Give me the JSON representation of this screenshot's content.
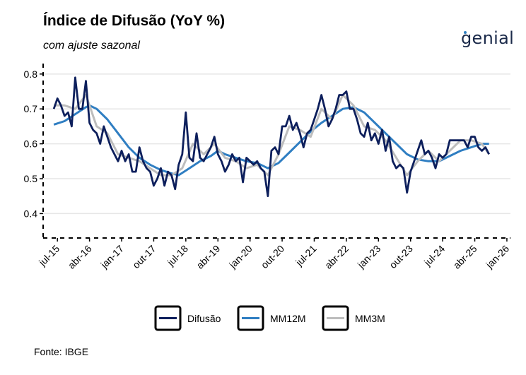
{
  "title": "Índice de Difusão (YoY %)",
  "subtitle": "com ajuste sazonal",
  "logo_text": "genial",
  "source": "Fonte: IBGE",
  "chart_data": {
    "type": "line",
    "title": "Índice de Difusão (YoY %)",
    "subtitle": "com ajuste sazonal",
    "xlabel": "",
    "ylabel": "",
    "ylim": [
      0.33,
      0.83
    ],
    "xlim": [
      "2015-03",
      "2026-02"
    ],
    "yticks": [
      0.4,
      0.5,
      0.6,
      0.7,
      0.8
    ],
    "ytick_labels": [
      "0.4",
      "0.5",
      "0.6",
      "0.7",
      "0.8"
    ],
    "xticks": [
      "2015-07",
      "2016-04",
      "2017-01",
      "2017-10",
      "2018-07",
      "2019-04",
      "2020-01",
      "2020-10",
      "2021-07",
      "2022-04",
      "2023-01",
      "2023-10",
      "2024-07",
      "2025-04",
      "2026-01"
    ],
    "xtick_labels": [
      "jul-15",
      "abr-16",
      "jan-17",
      "out-17",
      "jul-18",
      "abr-19",
      "jan-20",
      "out-20",
      "jul-21",
      "abr-22",
      "jan-23",
      "out-23",
      "jul-24",
      "abr-25",
      "jan-26"
    ],
    "grid": "horizontal",
    "legend_position": "bottom",
    "series": [
      {
        "name": "Difusão",
        "color": "#0d1f5c",
        "points": [
          [
            "2015-06",
            0.7
          ],
          [
            "2015-07",
            0.73
          ],
          [
            "2015-08",
            0.71
          ],
          [
            "2015-09",
            0.68
          ],
          [
            "2015-10",
            0.69
          ],
          [
            "2015-11",
            0.65
          ],
          [
            "2015-12",
            0.79
          ],
          [
            "2016-01",
            0.7
          ],
          [
            "2016-02",
            0.7
          ],
          [
            "2016-03",
            0.78
          ],
          [
            "2016-04",
            0.66
          ],
          [
            "2016-05",
            0.64
          ],
          [
            "2016-06",
            0.63
          ],
          [
            "2016-07",
            0.6
          ],
          [
            "2016-08",
            0.65
          ],
          [
            "2016-09",
            0.62
          ],
          [
            "2016-10",
            0.59
          ],
          [
            "2016-11",
            0.57
          ],
          [
            "2016-12",
            0.55
          ],
          [
            "2017-01",
            0.58
          ],
          [
            "2017-02",
            0.55
          ],
          [
            "2017-03",
            0.57
          ],
          [
            "2017-04",
            0.52
          ],
          [
            "2017-05",
            0.52
          ],
          [
            "2017-06",
            0.59
          ],
          [
            "2017-07",
            0.55
          ],
          [
            "2017-08",
            0.53
          ],
          [
            "2017-09",
            0.52
          ],
          [
            "2017-10",
            0.48
          ],
          [
            "2017-11",
            0.5
          ],
          [
            "2017-12",
            0.53
          ],
          [
            "2018-01",
            0.48
          ],
          [
            "2018-02",
            0.52
          ],
          [
            "2018-03",
            0.51
          ],
          [
            "2018-04",
            0.47
          ],
          [
            "2018-05",
            0.54
          ],
          [
            "2018-06",
            0.57
          ],
          [
            "2018-07",
            0.69
          ],
          [
            "2018-08",
            0.56
          ],
          [
            "2018-09",
            0.55
          ],
          [
            "2018-10",
            0.63
          ],
          [
            "2018-11",
            0.56
          ],
          [
            "2018-12",
            0.55
          ],
          [
            "2019-01",
            0.57
          ],
          [
            "2019-02",
            0.59
          ],
          [
            "2019-03",
            0.62
          ],
          [
            "2019-04",
            0.57
          ],
          [
            "2019-05",
            0.55
          ],
          [
            "2019-06",
            0.52
          ],
          [
            "2019-07",
            0.54
          ],
          [
            "2019-08",
            0.57
          ],
          [
            "2019-09",
            0.55
          ],
          [
            "2019-10",
            0.56
          ],
          [
            "2019-11",
            0.49
          ],
          [
            "2019-12",
            0.56
          ],
          [
            "2020-01",
            0.55
          ],
          [
            "2020-02",
            0.54
          ],
          [
            "2020-03",
            0.55
          ],
          [
            "2020-04",
            0.53
          ],
          [
            "2020-05",
            0.52
          ],
          [
            "2020-06",
            0.45
          ],
          [
            "2020-07",
            0.58
          ],
          [
            "2020-08",
            0.59
          ],
          [
            "2020-09",
            0.57
          ],
          [
            "2020-10",
            0.65
          ],
          [
            "2020-11",
            0.65
          ],
          [
            "2020-12",
            0.68
          ],
          [
            "2021-01",
            0.64
          ],
          [
            "2021-02",
            0.66
          ],
          [
            "2021-03",
            0.63
          ],
          [
            "2021-04",
            0.59
          ],
          [
            "2021-05",
            0.63
          ],
          [
            "2021-06",
            0.64
          ],
          [
            "2021-07",
            0.67
          ],
          [
            "2021-08",
            0.7
          ],
          [
            "2021-09",
            0.74
          ],
          [
            "2021-10",
            0.7
          ],
          [
            "2021-11",
            0.65
          ],
          [
            "2021-12",
            0.67
          ],
          [
            "2022-01",
            0.7
          ],
          [
            "2022-02",
            0.74
          ],
          [
            "2022-03",
            0.74
          ],
          [
            "2022-04",
            0.75
          ],
          [
            "2022-05",
            0.7
          ],
          [
            "2022-06",
            0.7
          ],
          [
            "2022-07",
            0.67
          ],
          [
            "2022-08",
            0.63
          ],
          [
            "2022-09",
            0.62
          ],
          [
            "2022-10",
            0.66
          ],
          [
            "2022-11",
            0.61
          ],
          [
            "2022-12",
            0.63
          ],
          [
            "2023-01",
            0.6
          ],
          [
            "2023-02",
            0.64
          ],
          [
            "2023-03",
            0.58
          ],
          [
            "2023-04",
            0.62
          ],
          [
            "2023-05",
            0.55
          ],
          [
            "2023-06",
            0.53
          ],
          [
            "2023-07",
            0.54
          ],
          [
            "2023-08",
            0.53
          ],
          [
            "2023-09",
            0.46
          ],
          [
            "2023-10",
            0.52
          ],
          [
            "2023-11",
            0.55
          ],
          [
            "2023-12",
            0.58
          ],
          [
            "2024-01",
            0.61
          ],
          [
            "2024-02",
            0.57
          ],
          [
            "2024-03",
            0.58
          ],
          [
            "2024-04",
            0.56
          ],
          [
            "2024-05",
            0.53
          ],
          [
            "2024-06",
            0.57
          ],
          [
            "2024-07",
            0.56
          ],
          [
            "2024-08",
            0.57
          ],
          [
            "2024-09",
            0.61
          ],
          [
            "2024-10",
            0.61
          ],
          [
            "2024-11",
            0.61
          ],
          [
            "2024-12",
            0.61
          ],
          [
            "2025-01",
            0.61
          ],
          [
            "2025-02",
            0.59
          ],
          [
            "2025-03",
            0.62
          ],
          [
            "2025-04",
            0.62
          ],
          [
            "2025-05",
            0.59
          ],
          [
            "2025-06",
            0.58
          ],
          [
            "2025-07",
            0.59
          ],
          [
            "2025-08",
            0.57
          ]
        ]
      },
      {
        "name": "MM12M",
        "color": "#2f7ec2",
        "points": [
          [
            "2015-06",
            0.655
          ],
          [
            "2015-09",
            0.665
          ],
          [
            "2015-12",
            0.685
          ],
          [
            "2016-03",
            0.705
          ],
          [
            "2016-04",
            0.71
          ],
          [
            "2016-06",
            0.7
          ],
          [
            "2016-09",
            0.67
          ],
          [
            "2016-12",
            0.63
          ],
          [
            "2017-03",
            0.59
          ],
          [
            "2017-06",
            0.56
          ],
          [
            "2017-09",
            0.54
          ],
          [
            "2017-12",
            0.525
          ],
          [
            "2018-03",
            0.515
          ],
          [
            "2018-05",
            0.51
          ],
          [
            "2018-08",
            0.53
          ],
          [
            "2018-11",
            0.55
          ],
          [
            "2019-02",
            0.565
          ],
          [
            "2019-04",
            0.58
          ],
          [
            "2019-06",
            0.57
          ],
          [
            "2019-09",
            0.56
          ],
          [
            "2019-12",
            0.55
          ],
          [
            "2020-03",
            0.545
          ],
          [
            "2020-06",
            0.53
          ],
          [
            "2020-09",
            0.545
          ],
          [
            "2020-12",
            0.575
          ],
          [
            "2021-03",
            0.605
          ],
          [
            "2021-06",
            0.635
          ],
          [
            "2021-09",
            0.66
          ],
          [
            "2021-12",
            0.68
          ],
          [
            "2022-03",
            0.7
          ],
          [
            "2022-06",
            0.705
          ],
          [
            "2022-09",
            0.69
          ],
          [
            "2022-12",
            0.66
          ],
          [
            "2023-03",
            0.63
          ],
          [
            "2023-06",
            0.6
          ],
          [
            "2023-09",
            0.57
          ],
          [
            "2023-12",
            0.555
          ],
          [
            "2024-03",
            0.55
          ],
          [
            "2024-06",
            0.55
          ],
          [
            "2024-09",
            0.565
          ],
          [
            "2024-12",
            0.58
          ],
          [
            "2025-03",
            0.59
          ],
          [
            "2025-06",
            0.6
          ],
          [
            "2025-08",
            0.6
          ]
        ]
      },
      {
        "name": "MM3M",
        "color": "#bdbdbd",
        "points": [
          [
            "2015-06",
            0.71
          ],
          [
            "2015-09",
            0.71
          ],
          [
            "2015-12",
            0.7
          ],
          [
            "2016-03",
            0.74
          ],
          [
            "2016-06",
            0.65
          ],
          [
            "2016-09",
            0.63
          ],
          [
            "2016-12",
            0.57
          ],
          [
            "2017-03",
            0.56
          ],
          [
            "2017-06",
            0.55
          ],
          [
            "2017-09",
            0.53
          ],
          [
            "2017-12",
            0.51
          ],
          [
            "2018-03",
            0.51
          ],
          [
            "2018-06",
            0.53
          ],
          [
            "2018-09",
            0.6
          ],
          [
            "2018-12",
            0.57
          ],
          [
            "2019-03",
            0.6
          ],
          [
            "2019-06",
            0.56
          ],
          [
            "2019-09",
            0.55
          ],
          [
            "2019-12",
            0.53
          ],
          [
            "2020-03",
            0.54
          ],
          [
            "2020-06",
            0.51
          ],
          [
            "2020-09",
            0.57
          ],
          [
            "2020-12",
            0.65
          ],
          [
            "2021-03",
            0.64
          ],
          [
            "2021-06",
            0.62
          ],
          [
            "2021-09",
            0.7
          ],
          [
            "2021-12",
            0.67
          ],
          [
            "2022-03",
            0.74
          ],
          [
            "2022-06",
            0.71
          ],
          [
            "2022-09",
            0.65
          ],
          [
            "2022-12",
            0.64
          ],
          [
            "2023-03",
            0.61
          ],
          [
            "2023-06",
            0.56
          ],
          [
            "2023-09",
            0.51
          ],
          [
            "2023-12",
            0.55
          ],
          [
            "2024-03",
            0.58
          ],
          [
            "2024-06",
            0.55
          ],
          [
            "2024-09",
            0.58
          ],
          [
            "2024-12",
            0.61
          ],
          [
            "2025-03",
            0.61
          ],
          [
            "2025-06",
            0.6
          ],
          [
            "2025-08",
            0.57
          ]
        ]
      }
    ]
  }
}
